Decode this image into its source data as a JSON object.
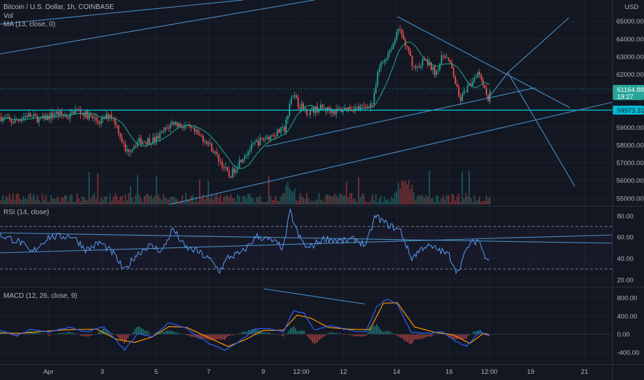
{
  "chart_data": {
    "type": "candlestick",
    "symbol_title": "Bitcoin / U.S. Dollar, 1h, COINBASE",
    "indicators_main": [
      "Vol",
      "MA (13, close, 0)"
    ],
    "currency": "USD",
    "price_axis": {
      "ticks": [
        65000,
        64000,
        63000,
        62000,
        61000,
        60000,
        59000,
        58000,
        57000,
        56000,
        55000
      ],
      "tick_labels": [
        "65000.00",
        "64000.00",
        "63000.00",
        "62000.00",
        "61000.00",
        "60000.00",
        "59000.00",
        "58000.00",
        "57000.00",
        "56000.00",
        "55000.00"
      ],
      "range": [
        54600,
        66200
      ]
    },
    "current_price": {
      "label": "61164.88",
      "value": 61164.88,
      "countdown": "19:27"
    },
    "horizontal_level": {
      "label": "59973.31",
      "value": 59973.31
    },
    "time_axis": {
      "labels": [
        "Apr",
        "3",
        "5",
        "7",
        "9",
        "12:00",
        "12",
        "14",
        "16",
        "12:00",
        "19",
        "21"
      ]
    },
    "price_keypoints": [
      {
        "x": 0,
        "y": 59600
      },
      {
        "x": 18,
        "y": 59300
      },
      {
        "x": 40,
        "y": 59700
      },
      {
        "x": 60,
        "y": 59400
      },
      {
        "x": 80,
        "y": 59800
      },
      {
        "x": 100,
        "y": 59600
      },
      {
        "x": 108,
        "y": 60000
      },
      {
        "x": 125,
        "y": 59700
      },
      {
        "x": 145,
        "y": 59300
      },
      {
        "x": 160,
        "y": 59800
      },
      {
        "x": 170,
        "y": 59000
      },
      {
        "x": 182,
        "y": 57600
      },
      {
        "x": 200,
        "y": 58200
      },
      {
        "x": 225,
        "y": 58300
      },
      {
        "x": 250,
        "y": 59300
      },
      {
        "x": 275,
        "y": 58900
      },
      {
        "x": 300,
        "y": 58200
      },
      {
        "x": 320,
        "y": 57000
      },
      {
        "x": 332,
        "y": 56200
      },
      {
        "x": 350,
        "y": 57300
      },
      {
        "x": 370,
        "y": 58100
      },
      {
        "x": 395,
        "y": 58600
      },
      {
        "x": 412,
        "y": 58900
      },
      {
        "x": 422,
        "y": 61000
      },
      {
        "x": 432,
        "y": 60300
      },
      {
        "x": 445,
        "y": 59900
      },
      {
        "x": 465,
        "y": 60100
      },
      {
        "x": 485,
        "y": 59900
      },
      {
        "x": 505,
        "y": 60100
      },
      {
        "x": 525,
        "y": 60100
      },
      {
        "x": 540,
        "y": 60400
      },
      {
        "x": 548,
        "y": 62300
      },
      {
        "x": 560,
        "y": 63100
      },
      {
        "x": 570,
        "y": 63800
      },
      {
        "x": 578,
        "y": 64600
      },
      {
        "x": 590,
        "y": 63300
      },
      {
        "x": 600,
        "y": 62300
      },
      {
        "x": 615,
        "y": 62800
      },
      {
        "x": 630,
        "y": 62100
      },
      {
        "x": 643,
        "y": 63200
      },
      {
        "x": 655,
        "y": 62200
      },
      {
        "x": 665,
        "y": 60500
      },
      {
        "x": 680,
        "y": 61400
      },
      {
        "x": 692,
        "y": 62200
      },
      {
        "x": 700,
        "y": 61500
      },
      {
        "x": 706,
        "y": 60500
      },
      {
        "x": 709,
        "y": 61165
      }
    ],
    "rsi": {
      "label": "RSI (14, close)",
      "ticks": [
        80,
        60,
        40,
        20
      ],
      "tick_labels": [
        "80.00",
        "60.00",
        "40.00",
        "20.00"
      ],
      "bands": [
        70,
        30
      ],
      "range": [
        14,
        88
      ],
      "keypoints": [
        {
          "x": 0,
          "y": 62
        },
        {
          "x": 30,
          "y": 55
        },
        {
          "x": 45,
          "y": 45
        },
        {
          "x": 70,
          "y": 60
        },
        {
          "x": 105,
          "y": 61
        },
        {
          "x": 125,
          "y": 48
        },
        {
          "x": 145,
          "y": 55
        },
        {
          "x": 165,
          "y": 44
        },
        {
          "x": 180,
          "y": 28
        },
        {
          "x": 195,
          "y": 42
        },
        {
          "x": 215,
          "y": 52
        },
        {
          "x": 235,
          "y": 47
        },
        {
          "x": 250,
          "y": 68
        },
        {
          "x": 268,
          "y": 50
        },
        {
          "x": 285,
          "y": 47
        },
        {
          "x": 305,
          "y": 38
        },
        {
          "x": 318,
          "y": 28
        },
        {
          "x": 330,
          "y": 41
        },
        {
          "x": 350,
          "y": 45
        },
        {
          "x": 372,
          "y": 61
        },
        {
          "x": 395,
          "y": 56
        },
        {
          "x": 410,
          "y": 50
        },
        {
          "x": 420,
          "y": 84
        },
        {
          "x": 432,
          "y": 61
        },
        {
          "x": 445,
          "y": 49
        },
        {
          "x": 470,
          "y": 59
        },
        {
          "x": 495,
          "y": 56
        },
        {
          "x": 515,
          "y": 58
        },
        {
          "x": 530,
          "y": 52
        },
        {
          "x": 543,
          "y": 80
        },
        {
          "x": 560,
          "y": 72
        },
        {
          "x": 580,
          "y": 66
        },
        {
          "x": 595,
          "y": 40
        },
        {
          "x": 615,
          "y": 52
        },
        {
          "x": 635,
          "y": 48
        },
        {
          "x": 650,
          "y": 43
        },
        {
          "x": 662,
          "y": 27
        },
        {
          "x": 678,
          "y": 52
        },
        {
          "x": 693,
          "y": 58
        },
        {
          "x": 700,
          "y": 44
        },
        {
          "x": 709,
          "y": 40
        }
      ]
    },
    "macd": {
      "label": "MACD (12, 26, close, 9)",
      "ticks": [
        800,
        400,
        0,
        -400
      ],
      "tick_labels": [
        "800.00",
        "400.00",
        "0.00",
        "-400.00"
      ],
      "range": [
        -640,
        1010
      ],
      "macd_keypoints": [
        {
          "x": 0,
          "y": 90
        },
        {
          "x": 25,
          "y": -30
        },
        {
          "x": 45,
          "y": 110
        },
        {
          "x": 70,
          "y": 40
        },
        {
          "x": 100,
          "y": 150
        },
        {
          "x": 125,
          "y": 50
        },
        {
          "x": 150,
          "y": 160
        },
        {
          "x": 180,
          "y": -340
        },
        {
          "x": 200,
          "y": 20
        },
        {
          "x": 220,
          "y": -60
        },
        {
          "x": 245,
          "y": 260
        },
        {
          "x": 270,
          "y": 120
        },
        {
          "x": 300,
          "y": -180
        },
        {
          "x": 325,
          "y": -350
        },
        {
          "x": 345,
          "y": -180
        },
        {
          "x": 370,
          "y": 120
        },
        {
          "x": 395,
          "y": 110
        },
        {
          "x": 410,
          "y": 50
        },
        {
          "x": 425,
          "y": 530
        },
        {
          "x": 440,
          "y": 450
        },
        {
          "x": 455,
          "y": 100
        },
        {
          "x": 480,
          "y": 190
        },
        {
          "x": 505,
          "y": 80
        },
        {
          "x": 530,
          "y": 60
        },
        {
          "x": 545,
          "y": 600
        },
        {
          "x": 560,
          "y": 780
        },
        {
          "x": 575,
          "y": 660
        },
        {
          "x": 595,
          "y": 40
        },
        {
          "x": 620,
          "y": 20
        },
        {
          "x": 640,
          "y": 60
        },
        {
          "x": 655,
          "y": -120
        },
        {
          "x": 675,
          "y": -270
        },
        {
          "x": 695,
          "y": 60
        },
        {
          "x": 705,
          "y": -20
        },
        {
          "x": 709,
          "y": -80
        }
      ],
      "signal_keypoints": [
        {
          "x": 0,
          "y": 30
        },
        {
          "x": 30,
          "y": 20
        },
        {
          "x": 60,
          "y": 60
        },
        {
          "x": 100,
          "y": 100
        },
        {
          "x": 140,
          "y": 110
        },
        {
          "x": 170,
          "y": -120
        },
        {
          "x": 195,
          "y": -180
        },
        {
          "x": 220,
          "y": -60
        },
        {
          "x": 245,
          "y": 170
        },
        {
          "x": 270,
          "y": 150
        },
        {
          "x": 300,
          "y": -60
        },
        {
          "x": 330,
          "y": -270
        },
        {
          "x": 355,
          "y": -120
        },
        {
          "x": 380,
          "y": 80
        },
        {
          "x": 410,
          "y": 90
        },
        {
          "x": 430,
          "y": 420
        },
        {
          "x": 450,
          "y": 350
        },
        {
          "x": 475,
          "y": 150
        },
        {
          "x": 505,
          "y": 110
        },
        {
          "x": 535,
          "y": 100
        },
        {
          "x": 555,
          "y": 680
        },
        {
          "x": 575,
          "y": 690
        },
        {
          "x": 600,
          "y": 160
        },
        {
          "x": 630,
          "y": 40
        },
        {
          "x": 655,
          "y": -10
        },
        {
          "x": 680,
          "y": -200
        },
        {
          "x": 700,
          "y": 20
        },
        {
          "x": 709,
          "y": -10
        }
      ]
    },
    "colors": {
      "background": "#131722",
      "up": "#26a69a",
      "down": "#ef5350",
      "ma": "#22ab94",
      "trendline": "#4a90c8",
      "level": "#00bcd4",
      "price_tag": "#26a69a",
      "rsi": "#5b9cf6",
      "macd": "#2962ff",
      "signal": "#ff9800",
      "axis_text": "#b2b5be",
      "grid": "#1e222d"
    }
  }
}
